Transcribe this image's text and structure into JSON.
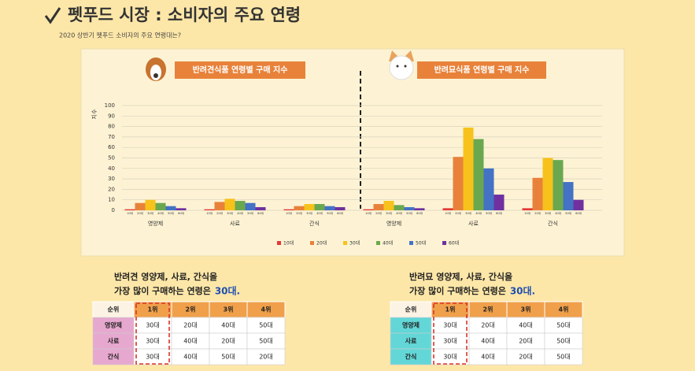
{
  "header": {
    "title": "펫푸드 시장 : 소비자의 주요 연령",
    "subtitle": "2020 상반기 펫푸드 소비자의 주요 연령대는?"
  },
  "chart_data": {
    "type": "bar",
    "panel_titles": [
      "반려견식품 연령별 구매 지수",
      "반려묘식품 연령별 구매 지수"
    ],
    "y_label": "지수",
    "categories": [
      "영양제",
      "사료",
      "간식",
      "영양제",
      "사료",
      "간식"
    ],
    "series": [
      {
        "name": "10대",
        "color": "#e53935",
        "values": [
          1,
          1,
          1,
          1,
          2,
          2
        ]
      },
      {
        "name": "20대",
        "color": "#e8823a",
        "values": [
          7,
          8,
          4,
          6,
          51,
          31
        ]
      },
      {
        "name": "30대",
        "color": "#f7c21b",
        "values": [
          10,
          11,
          6,
          9,
          79,
          50
        ]
      },
      {
        "name": "40대",
        "color": "#6aa84f",
        "values": [
          7,
          9,
          6,
          5,
          68,
          48
        ]
      },
      {
        "name": "50대",
        "color": "#4472c4",
        "values": [
          4,
          7,
          4,
          3,
          40,
          27
        ]
      },
      {
        "name": "60대",
        "color": "#7030a0",
        "values": [
          2,
          3,
          3,
          2,
          15,
          10
        ]
      }
    ],
    "ylim": [
      0,
      100
    ],
    "yticks": [
      0,
      10,
      20,
      30,
      40,
      50,
      60,
      70,
      80,
      90,
      100
    ],
    "grid": true,
    "legend": "bottom"
  },
  "tables": [
    {
      "summary": [
        "반려견 영양제, 사료, 간식을",
        "가장 많이 구매하는 연령은"
      ],
      "emphasis": "30대.",
      "header": [
        "순위",
        "1위",
        "2위",
        "3위",
        "4위"
      ],
      "rows": [
        [
          "영양제",
          "30대",
          "20대",
          "40대",
          "50대"
        ],
        [
          "사료",
          "30대",
          "40대",
          "20대",
          "50대"
        ],
        [
          "간식",
          "30대",
          "40대",
          "50대",
          "20대"
        ]
      ]
    },
    {
      "summary": [
        "반려묘 영양제, 사료, 간식을",
        "가장 많이 구매하는 연령은"
      ],
      "emphasis": "30대.",
      "header": [
        "순위",
        "1위",
        "2위",
        "3위",
        "4위"
      ],
      "rows": [
        [
          "영양제",
          "30대",
          "20대",
          "40대",
          "50대"
        ],
        [
          "사료",
          "30대",
          "40대",
          "20대",
          "50대"
        ],
        [
          "간식",
          "30대",
          "40대",
          "20대",
          "50대"
        ]
      ]
    }
  ]
}
